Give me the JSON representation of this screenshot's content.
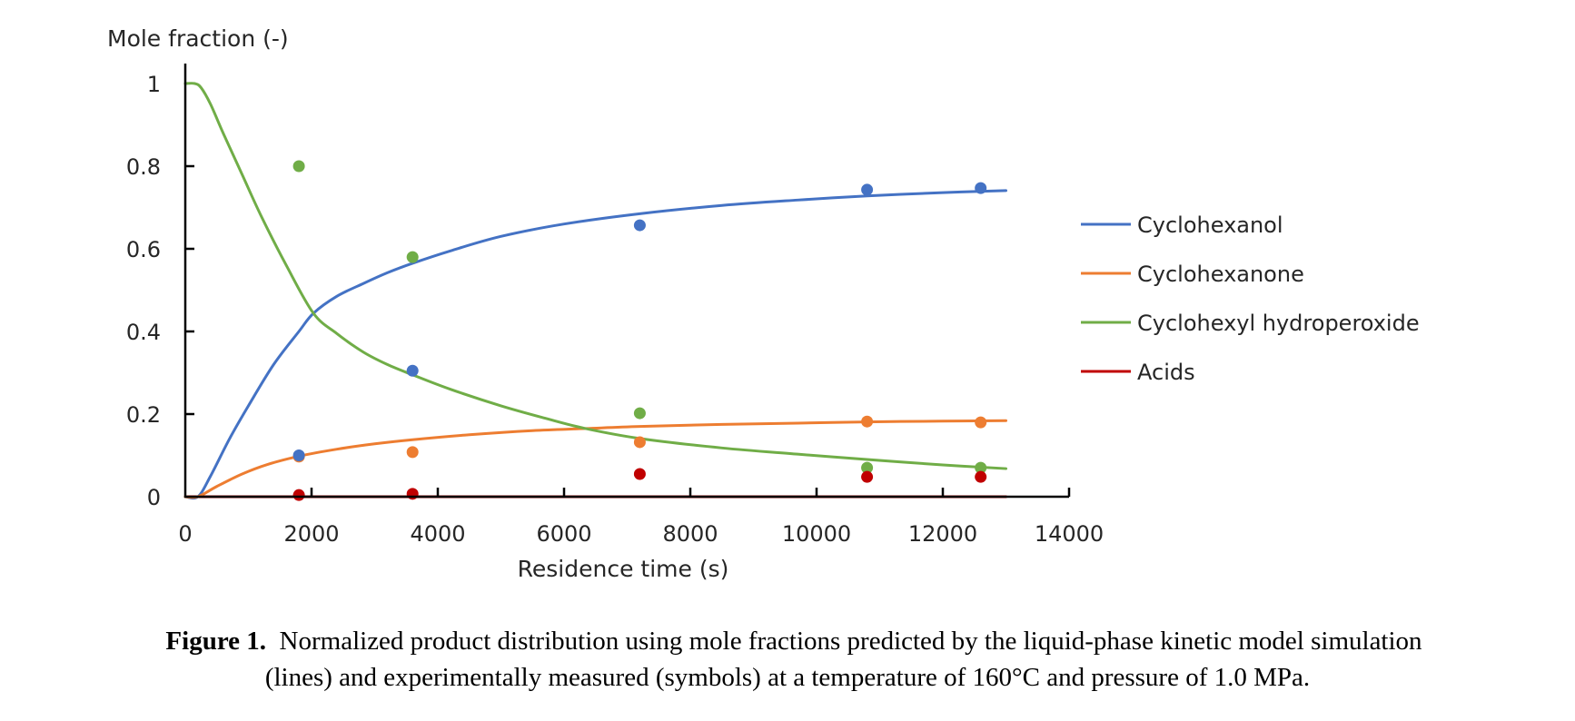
{
  "chart_data": {
    "type": "line",
    "title": "",
    "ylabel": "Mole fraction (-)",
    "xlabel": "Residence time (s)",
    "xlim": [
      0,
      14000
    ],
    "ylim": [
      0,
      1
    ],
    "x_ticks": [
      0,
      2000,
      4000,
      6000,
      8000,
      10000,
      12000,
      14000
    ],
    "x_tick_labels": [
      "0",
      "2000",
      "4000",
      "6000",
      "8000",
      "10000",
      "12000",
      "14000"
    ],
    "y_ticks": [
      0,
      0.2,
      0.4,
      0.6,
      0.8,
      1
    ],
    "y_tick_labels": [
      "0",
      "0.2",
      "0.4",
      "0.6",
      "0.8",
      "1"
    ],
    "grid": false,
    "legend_position": "right",
    "series": [
      {
        "name": "Cyclohexanol",
        "color": "#4472C4",
        "model_line": {
          "x": [
            0,
            200,
            400,
            700,
            1000,
            1400,
            1800,
            2030,
            2400,
            2820,
            3200,
            3600,
            4200,
            5000,
            6000,
            7200,
            8500,
            9700,
            10800,
            12000,
            13000
          ],
          "y": [
            0,
            0,
            0.05,
            0.14,
            0.22,
            0.32,
            0.4,
            0.444,
            0.485,
            0.516,
            0.542,
            0.565,
            0.595,
            0.63,
            0.66,
            0.685,
            0.705,
            0.718,
            0.728,
            0.736,
            0.741
          ]
        },
        "measured": {
          "x": [
            1800,
            3600,
            7200,
            10800,
            12600
          ],
          "y": [
            0.1,
            0.305,
            0.657,
            0.743,
            0.747
          ]
        }
      },
      {
        "name": "Cyclohexanone",
        "color": "#ED7D31",
        "model_line": {
          "x": [
            0,
            200,
            500,
            900,
            1300,
            1800,
            2400,
            3000,
            3600,
            4500,
            5500,
            6340,
            7200,
            8500,
            9700,
            10800,
            12000,
            13000
          ],
          "y": [
            0,
            0,
            0.025,
            0.055,
            0.078,
            0.098,
            0.115,
            0.128,
            0.138,
            0.15,
            0.16,
            0.165,
            0.17,
            0.175,
            0.178,
            0.181,
            0.183,
            0.184
          ]
        },
        "measured": {
          "x": [
            1800,
            3600,
            7200,
            10800,
            12600
          ],
          "y": [
            0.097,
            0.108,
            0.132,
            0.182,
            0.18
          ]
        }
      },
      {
        "name": "Cyclohexyl hydroperoxide",
        "color": "#70AD47",
        "model_line": {
          "x": [
            0,
            150,
            250,
            400,
            600,
            900,
            1200,
            1600,
            2030,
            2400,
            2820,
            3200,
            3600,
            4200,
            5000,
            5700,
            6340,
            7200,
            8500,
            9700,
            10800,
            12000,
            13000
          ],
          "y": [
            1.0,
            1.0,
            0.99,
            0.95,
            0.88,
            0.78,
            0.68,
            0.56,
            0.444,
            0.395,
            0.35,
            0.32,
            0.295,
            0.26,
            0.22,
            0.19,
            0.165,
            0.141,
            0.118,
            0.103,
            0.09,
            0.077,
            0.068
          ]
        },
        "measured": {
          "x": [
            1800,
            3600,
            7200,
            10800,
            12600
          ],
          "y": [
            0.8,
            0.58,
            0.202,
            0.07,
            0.07
          ]
        }
      },
      {
        "name": "Acids",
        "color": "#C00000",
        "model_line": {
          "x": [
            0,
            13000
          ],
          "y": [
            0,
            0
          ]
        },
        "measured": {
          "x": [
            1800,
            3600,
            7200,
            10800,
            12600
          ],
          "y": [
            0.004,
            0.007,
            0.055,
            0.048,
            0.048
          ]
        }
      }
    ]
  },
  "caption": {
    "label": "Figure 1.",
    "line1": "Normalized product distribution using mole fractions predicted by the liquid-phase kinetic model simulation",
    "line2": "(lines) and experimentally measured (symbols) at a temperature of 160°C and pressure of 1.0 MPa."
  }
}
